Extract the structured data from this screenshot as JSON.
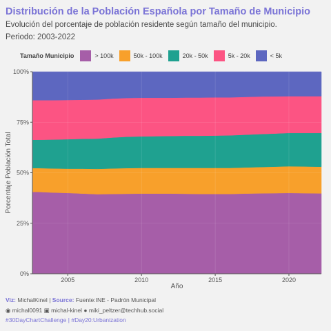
{
  "header": {
    "title": "Distribución de la Población Española por Tamaño de Municipio",
    "subtitle": "Evolución del porcentaje de población residente según tamaño del municipio.",
    "period": "Periodo: 2003-2022"
  },
  "legend": {
    "title": "Tamaño Municipio",
    "items": [
      {
        "label": "> 100k",
        "color": "#a65ea8"
      },
      {
        "label": "50k - 100k",
        "color": "#f8a02b"
      },
      {
        "label": "20k - 50k",
        "color": "#1fa190"
      },
      {
        "label": "5k - 20k",
        "color": "#fc5483"
      },
      {
        "label": "< 5k",
        "color": "#5d67c0"
      }
    ]
  },
  "footer": {
    "viz_label": "Viz:",
    "viz_value": "MichalKinel",
    "sep1": "|",
    "source_label": "Source:",
    "source_value": "Fuente:INE - Padrón Municipal",
    "github_icon": "github-icon",
    "github": "michal0091",
    "linkedin_icon": "linkedin-icon",
    "linkedin": "michal-kinel",
    "mastodon_icon": "mastodon-icon",
    "mastodon": "miki_peltzer@techhub.social",
    "hashtag1": "#30DayChartChallenge",
    "sep2": "|",
    "hashtag2": "#Day20:Urbanization"
  },
  "chart_data": {
    "type": "area",
    "stacked": true,
    "x": [
      2003,
      2004,
      2005,
      2006,
      2007,
      2008,
      2009,
      2010,
      2011,
      2012,
      2013,
      2014,
      2015,
      2016,
      2017,
      2018,
      2019,
      2020,
      2021,
      2022
    ],
    "series": [
      {
        "name": "> 100k",
        "color": "#a65ea8",
        "values": [
          40.5,
          40.2,
          40.0,
          39.7,
          39.4,
          39.5,
          39.6,
          39.7,
          39.7,
          39.7,
          39.6,
          39.5,
          39.5,
          39.5,
          39.7,
          39.8,
          39.9,
          40.0,
          39.9,
          39.8
        ]
      },
      {
        "name": "50k - 100k",
        "color": "#f8a02b",
        "values": [
          11.8,
          11.9,
          12.0,
          12.3,
          12.5,
          12.6,
          12.7,
          12.7,
          12.7,
          12.7,
          12.8,
          12.9,
          12.9,
          12.9,
          12.9,
          13.0,
          13.1,
          13.2,
          13.2,
          13.2
        ]
      },
      {
        "name": "20k - 50k",
        "color": "#1fa190",
        "values": [
          14.0,
          14.3,
          14.6,
          14.8,
          15.0,
          15.3,
          15.5,
          15.6,
          15.7,
          15.8,
          15.9,
          15.9,
          16.0,
          16.1,
          16.2,
          16.3,
          16.4,
          16.5,
          16.6,
          16.7
        ]
      },
      {
        "name": "5k - 20k",
        "color": "#fc5483",
        "values": [
          19.6,
          19.5,
          19.4,
          19.3,
          19.3,
          19.3,
          19.2,
          19.1,
          19.0,
          18.9,
          18.9,
          18.9,
          18.9,
          18.8,
          18.7,
          18.6,
          18.4,
          18.2,
          18.2,
          18.2
        ]
      },
      {
        "name": "< 5k",
        "color": "#5d67c0",
        "values": [
          14.1,
          14.1,
          14.0,
          13.9,
          13.8,
          13.3,
          13.0,
          12.9,
          12.9,
          12.9,
          12.8,
          12.8,
          12.7,
          12.7,
          12.5,
          12.3,
          12.2,
          12.1,
          12.1,
          12.1
        ]
      }
    ],
    "xlabel": "Año",
    "ylabel": "Porcentaje Población Total",
    "x_ticks": [
      2005,
      2010,
      2015,
      2020
    ],
    "y_ticks": [
      0,
      25,
      50,
      75,
      100
    ],
    "y_tick_labels": [
      "0%",
      "25%",
      "50%",
      "75%",
      "100%"
    ],
    "xlim": [
      2002.6,
      2022.2
    ],
    "ylim": [
      0,
      100
    ],
    "grid": true,
    "legend_position": "top"
  }
}
